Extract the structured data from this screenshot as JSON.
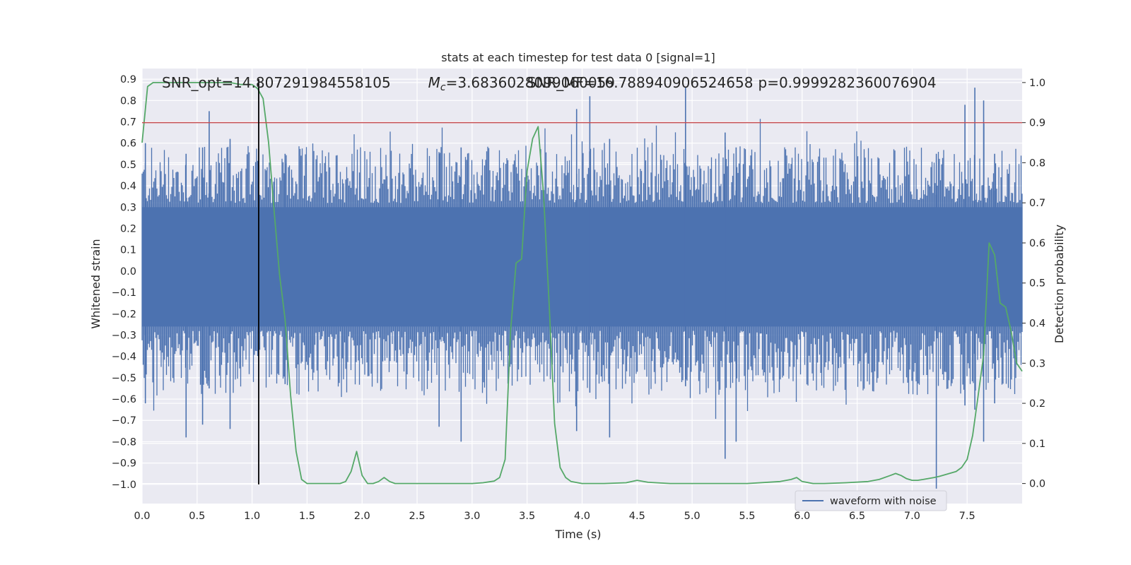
{
  "chart_data": {
    "type": "line",
    "title": "stats at each timestep for test data 0 [signal=1]",
    "xlabel": "Time (s)",
    "ylabel": "Whitened strain",
    "y2label": "Detection probability",
    "xlim": [
      0.0,
      8.0
    ],
    "ylim": [
      -1.09,
      0.95
    ],
    "y2lim": [
      -0.05,
      1.035
    ],
    "xticks": [
      "0.0",
      "0.5",
      "1.0",
      "1.5",
      "2.0",
      "2.5",
      "3.0",
      "3.5",
      "4.0",
      "4.5",
      "5.0",
      "5.5",
      "6.0",
      "6.5",
      "7.0",
      "7.5"
    ],
    "yticks": [
      "0.9",
      "0.8",
      "0.7",
      "0.6",
      "0.5",
      "0.4",
      "0.3",
      "0.2",
      "0.1",
      "0.0",
      "−0.1",
      "−0.2",
      "−0.3",
      "−0.4",
      "−0.5",
      "−0.6",
      "−0.7",
      "−0.8",
      "−0.9",
      "−1.0"
    ],
    "y2ticks": [
      "1.0",
      "0.9",
      "0.8",
      "0.7",
      "0.6",
      "0.5",
      "0.4",
      "0.3",
      "0.2",
      "0.1",
      "0.0"
    ],
    "grid": true,
    "legend": {
      "position": "lower-right",
      "entries": [
        "waveform with noise"
      ]
    },
    "annotations": [
      {
        "text": "SNR_opt=14.807291984558105",
        "x": 0.18
      },
      {
        "text": "M_c=3.6836028099060059",
        "x": 2.6
      },
      {
        "text": "SNR_MF=16.788940906524658",
        "x": 3.5
      },
      {
        "text": "p=0.9999282360076904",
        "x": 5.6
      }
    ],
    "waveform": {
      "name": "waveform with noise",
      "color": "#4c72b0",
      "core_range": [
        -0.26,
        0.3
      ],
      "spikes": [
        {
          "t": 0.03,
          "hi": 0.6,
          "lo": -0.62
        },
        {
          "t": 0.4,
          "hi": 0.55,
          "lo": -0.78
        },
        {
          "t": 0.55,
          "hi": 0.58,
          "lo": -0.72
        },
        {
          "t": 0.61,
          "hi": 0.75,
          "lo": -0.55
        },
        {
          "t": 0.8,
          "hi": 0.62,
          "lo": -0.74
        },
        {
          "t": 1.3,
          "hi": 0.55,
          "lo": -0.53
        },
        {
          "t": 2.7,
          "hi": 0.55,
          "lo": -0.73
        },
        {
          "t": 2.9,
          "hi": 0.58,
          "lo": -0.8
        },
        {
          "t": 3.95,
          "hi": 0.76,
          "lo": -0.75
        },
        {
          "t": 4.07,
          "hi": 0.82,
          "lo": -0.57
        },
        {
          "t": 4.25,
          "hi": 0.62,
          "lo": -0.78
        },
        {
          "t": 4.94,
          "hi": 0.86,
          "lo": -0.54
        },
        {
          "t": 5.3,
          "hi": 0.65,
          "lo": -0.88
        },
        {
          "t": 5.4,
          "hi": 0.58,
          "lo": -0.8
        },
        {
          "t": 7.22,
          "hi": 0.55,
          "lo": -1.02
        },
        {
          "t": 7.48,
          "hi": 0.78,
          "lo": -0.63
        },
        {
          "t": 7.57,
          "hi": 0.86,
          "lo": -0.65
        },
        {
          "t": 7.65,
          "hi": 0.8,
          "lo": -0.8
        },
        {
          "t": 7.75,
          "hi": 0.55,
          "lo": -0.62
        }
      ]
    },
    "probability": {
      "color": "#55a868",
      "x": [
        0.0,
        0.05,
        0.1,
        0.15,
        0.2,
        0.3,
        0.4,
        0.5,
        0.6,
        0.7,
        0.8,
        0.9,
        1.0,
        1.05,
        1.1,
        1.15,
        1.2,
        1.25,
        1.3,
        1.35,
        1.4,
        1.45,
        1.5,
        1.6,
        1.7,
        1.8,
        1.85,
        1.9,
        1.95,
        2.0,
        2.05,
        2.1,
        2.15,
        2.2,
        2.25,
        2.3,
        2.35,
        2.4,
        2.6,
        2.8,
        3.0,
        3.1,
        3.2,
        3.25,
        3.3,
        3.35,
        3.4,
        3.45,
        3.5,
        3.55,
        3.6,
        3.65,
        3.7,
        3.75,
        3.8,
        3.85,
        3.9,
        4.0,
        4.2,
        4.4,
        4.5,
        4.6,
        4.8,
        5.0,
        5.5,
        5.8,
        5.9,
        5.95,
        6.0,
        6.1,
        6.2,
        6.4,
        6.6,
        6.7,
        6.8,
        6.85,
        6.9,
        6.95,
        7.0,
        7.05,
        7.1,
        7.2,
        7.25,
        7.3,
        7.4,
        7.45,
        7.5,
        7.55,
        7.6,
        7.65,
        7.7,
        7.75,
        7.8,
        7.85,
        7.9,
        7.95,
        8.0
      ],
      "y": [
        0.85,
        0.99,
        1.0,
        1.0,
        1.0,
        1.0,
        1.0,
        1.0,
        1.0,
        1.0,
        1.0,
        0.995,
        0.995,
        0.985,
        0.96,
        0.85,
        0.68,
        0.52,
        0.41,
        0.22,
        0.08,
        0.01,
        0.0,
        0.0,
        0.0,
        0.0,
        0.005,
        0.03,
        0.08,
        0.02,
        0.0,
        0.0,
        0.005,
        0.015,
        0.005,
        0.0,
        0.0,
        0.0,
        0.0,
        0.0,
        0.0,
        0.002,
        0.006,
        0.015,
        0.06,
        0.38,
        0.55,
        0.56,
        0.78,
        0.86,
        0.89,
        0.72,
        0.45,
        0.15,
        0.04,
        0.015,
        0.005,
        0.0,
        0.0,
        0.002,
        0.008,
        0.003,
        0.0,
        0.0,
        0.0,
        0.005,
        0.01,
        0.015,
        0.005,
        0.0,
        0.0,
        0.002,
        0.005,
        0.01,
        0.02,
        0.025,
        0.02,
        0.012,
        0.008,
        0.008,
        0.01,
        0.015,
        0.018,
        0.022,
        0.03,
        0.04,
        0.06,
        0.12,
        0.22,
        0.32,
        0.6,
        0.57,
        0.45,
        0.44,
        0.38,
        0.3,
        0.28
      ]
    },
    "threshold": {
      "value": 0.9,
      "color": "#c44e52"
    },
    "marker": {
      "x": 1.06,
      "y_range": [
        -1.0,
        0.9
      ]
    }
  }
}
